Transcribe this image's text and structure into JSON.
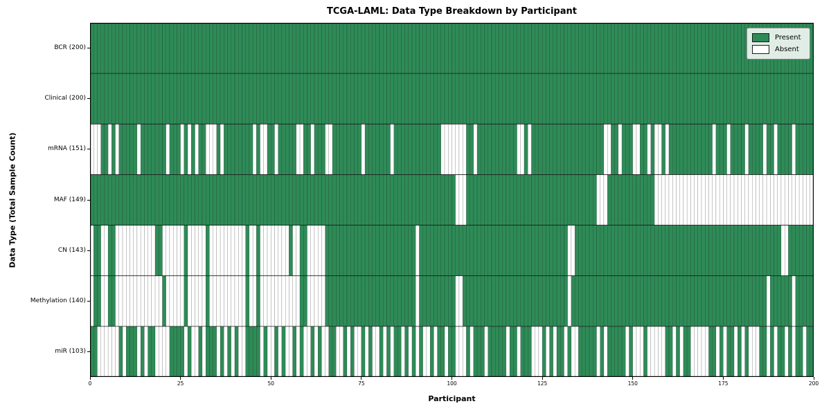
{
  "title": "TCGA-LAML: Data Type Breakdown by Participant",
  "axes": {
    "xlabel": "Participant",
    "ylabel": "Data Type (Total Sample Count)"
  },
  "legend": {
    "present_label": "Present",
    "absent_label": "Absent"
  },
  "colors": {
    "present": "#2e8b57",
    "absent": "#ffffff",
    "cell_edge": "#000000",
    "row_divider": "#1a1a1a",
    "axis_frame": "#000000",
    "legend_border": "#8a8a8a"
  },
  "chart_data": {
    "type": "heatmap",
    "title": "TCGA-LAML: Data Type Breakdown by Participant",
    "xlabel": "Participant",
    "ylabel": "Data Type (Total Sample Count)",
    "x_range": [
      0,
      200
    ],
    "x_ticks": [
      0,
      25,
      50,
      75,
      100,
      125,
      150,
      175,
      200
    ],
    "n_participants": 200,
    "grid": false,
    "legend_position": "upper right",
    "legend_entries": [
      {
        "label": "Present",
        "color": "#2e8b57"
      },
      {
        "label": "Absent",
        "color": "#ffffff"
      }
    ],
    "rows": [
      {
        "label": "BCR (200)",
        "data_type": "BCR",
        "present_count": 200,
        "pattern": "11111111111111111111111111111111111111111111111111111111111111111111111111111111111111111111111111111111111111111111111111111111111111111111111111111111111111111111111111111111111111111111111111111111"
      },
      {
        "label": "Clinical (200)",
        "data_type": "Clinical",
        "present_count": 200,
        "pattern": "11111111111111111111111111111111111111111111111111111111111111111111111111111111111111111111111111111111111111111111111111111111111111111111111111111111111111111111111111111111111111111111111111111111"
      },
      {
        "label": "mRNA (151)",
        "data_type": "mRNA",
        "present_count": 151,
        "pattern": "000110101111101111111011101010110001011111111010011011111001101110011111111011111110111111111111100000001101111111111100101111111111111111111100110111001101001011111111111101110111101111011011110111111"
      },
      {
        "label": "MAF (149)",
        "data_type": "MAF",
        "present_count": 149,
        "pattern": "11111111111111111111111111111111111111111111111111111111111111111111111111111111111111111111111111111000111111111111111111111111111111111111000111111111111100000000000000000000000000000000000000000000"
      },
      {
        "label": "CN (143)",
        "data_type": "CN",
        "present_count": 143,
        "pattern": "01100110000000000011000000100000100000000001001000000001001100000111111111111111111111111101111111111111111111111111111111111111111100111111111111111111111111111111111111111111111111111111111001111111"
      },
      {
        "label": "Methylation (140)",
        "data_type": "Methylation",
        "present_count": 140,
        "pattern": "01100110000000000000100000100000100000000001001000000000001100000111111111111111111111111101111111111001111111111111111111111111111101111111111111111111111111111111111111111111111111111110111111011111"
      },
      {
        "label": "miR (103)",
        "data_type": "miR",
        "present_count": 103,
        "pattern": "11000000101110101100001111010010111010101001111010010100101001010011001010010100101011010101001011011000101110111110110111000101011010011111010111110100010000011010110000011010110101000110101101011011"
      }
    ]
  }
}
